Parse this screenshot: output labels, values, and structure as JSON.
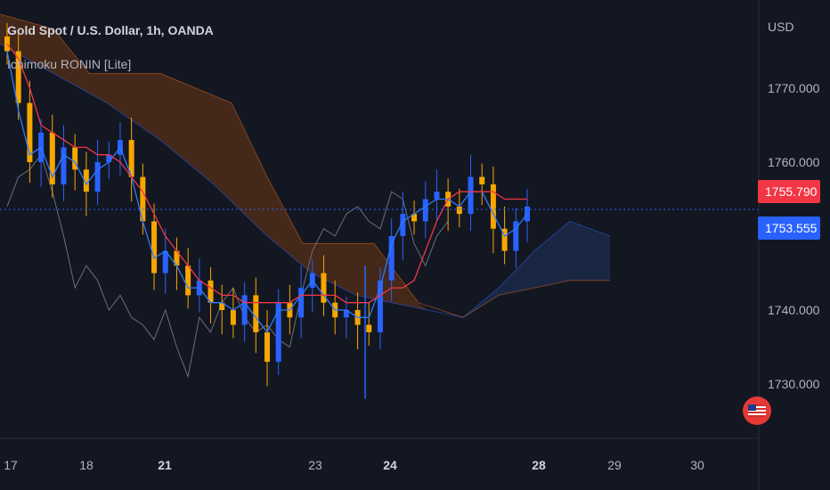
{
  "header": {
    "symbol": "Gold Spot / U.S. Dollar, 1h, OANDA",
    "indicator": "Ichimoku RONIN [Lite]"
  },
  "axis": {
    "currency": "USD",
    "y_ticks": [
      "1770.000",
      "1760.000",
      "1740.000",
      "1730.000"
    ],
    "x_ticks": [
      "17",
      "18",
      "21",
      "23",
      "24",
      "28",
      "29",
      "30"
    ],
    "bold_x_ticks": [
      "21",
      "24",
      "28"
    ]
  },
  "price_labels": {
    "upper": {
      "text": "1755.790",
      "color": "#f23645"
    },
    "current": {
      "text": "1753.555",
      "color": "#2962ff"
    }
  },
  "colors": {
    "background": "#131722",
    "up_candle": "#2962ff",
    "down_candle": "#f7a600",
    "tenkan": "#2a7bff",
    "kijun": "#f23645",
    "chikou": "#6b6f7a",
    "cloud_bear": "#5a3015",
    "cloud_bull": "#1c2a48",
    "span_a": "#2962ff",
    "span_b": "#c06020"
  },
  "chart_data": {
    "type": "candlestick",
    "title": "Gold Spot / U.S. Dollar, 1h, OANDA",
    "ylim": [
      1724,
      1780
    ],
    "x_labels": [
      "17",
      "18",
      "21",
      "23",
      "24",
      "28",
      "29",
      "30"
    ],
    "current_price": 1753.555,
    "marked_price": 1755.79,
    "price_series_close": [
      1775,
      1768,
      1760,
      1764,
      1757,
      1762,
      1759,
      1756,
      1760,
      1761,
      1763,
      1758,
      1752,
      1745,
      1748,
      1746,
      1742,
      1744,
      1741,
      1740,
      1738,
      1742,
      1737,
      1733,
      1741,
      1739,
      1743,
      1745,
      1741,
      1739,
      1740,
      1738,
      1737,
      1744,
      1750,
      1753,
      1752,
      1755,
      1756,
      1754,
      1753,
      1758,
      1757,
      1751,
      1748,
      1752,
      1754
    ],
    "series": [
      {
        "name": "Tenkan",
        "values": [
          1775,
          1767,
          1761,
          1762,
          1758,
          1761,
          1760,
          1757,
          1759,
          1760,
          1762,
          1758,
          1752,
          1747,
          1748,
          1746,
          1743,
          1743,
          1741,
          1741,
          1740,
          1741,
          1739,
          1737,
          1740,
          1740,
          1742,
          1744,
          1742,
          1740,
          1740,
          1739,
          1739,
          1743,
          1749,
          1752,
          1753,
          1754,
          1755,
          1755,
          1754,
          1756,
          1756,
          1753,
          1750,
          1751,
          1753
        ]
      },
      {
        "name": "Kijun",
        "values": [
          1776,
          1774,
          1770,
          1765,
          1764,
          1763,
          1762,
          1762,
          1761,
          1761,
          1760,
          1758,
          1756,
          1753,
          1750,
          1748,
          1746,
          1744,
          1743,
          1742,
          1742,
          1741,
          1741,
          1741,
          1741,
          1741,
          1742,
          1742,
          1742,
          1742,
          1741,
          1741,
          1741,
          1742,
          1743,
          1743,
          1744,
          1748,
          1752,
          1755,
          1756,
          1756,
          1756,
          1756,
          1755,
          1755,
          1755
        ]
      }
    ]
  }
}
